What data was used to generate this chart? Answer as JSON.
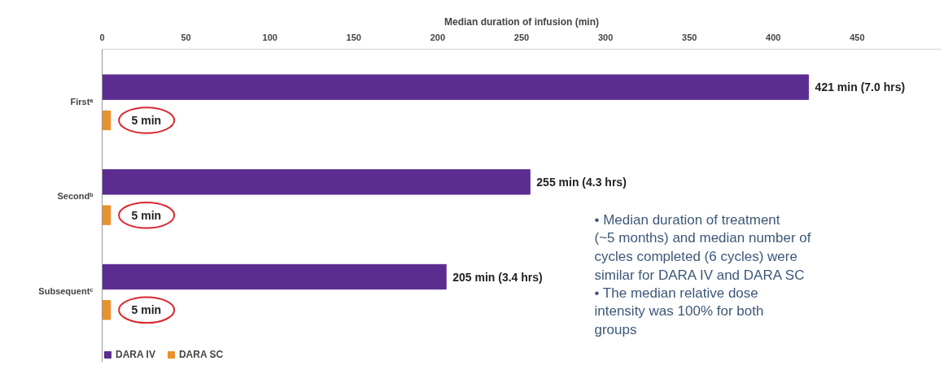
{
  "chart_data": {
    "type": "bar",
    "orientation": "horizontal",
    "xlabel": "Median duration of infusion (min)",
    "categories": [
      "Firstᵃ",
      "Secondᵇ",
      "Subsequentᶜ"
    ],
    "series": [
      {
        "name": "DARA IV",
        "color": "#5c2d91",
        "values": [
          421,
          255,
          205
        ],
        "value_labels": [
          "421 min (7.0 hrs)",
          "255 min (4.3 hrs)",
          "205 min (3.4 hrs)"
        ]
      },
      {
        "name": "DARA SC",
        "color": "#e8912d",
        "values": [
          5,
          5,
          5
        ],
        "value_labels": [
          "5 min",
          "5 min",
          "5 min"
        ]
      }
    ],
    "xlim": [
      0,
      500
    ],
    "xticks": [
      0,
      50,
      100,
      150,
      200,
      250,
      300,
      350,
      400,
      450
    ],
    "grid": false,
    "legend": "bottom left",
    "annotations": [
      "• Median duration of treatment (~5 months) and median number of cycles completed (6 cycles) were similar for DARA IV and DARA SC",
      "• The median relative dose intensity was 100% for both groups"
    ]
  }
}
